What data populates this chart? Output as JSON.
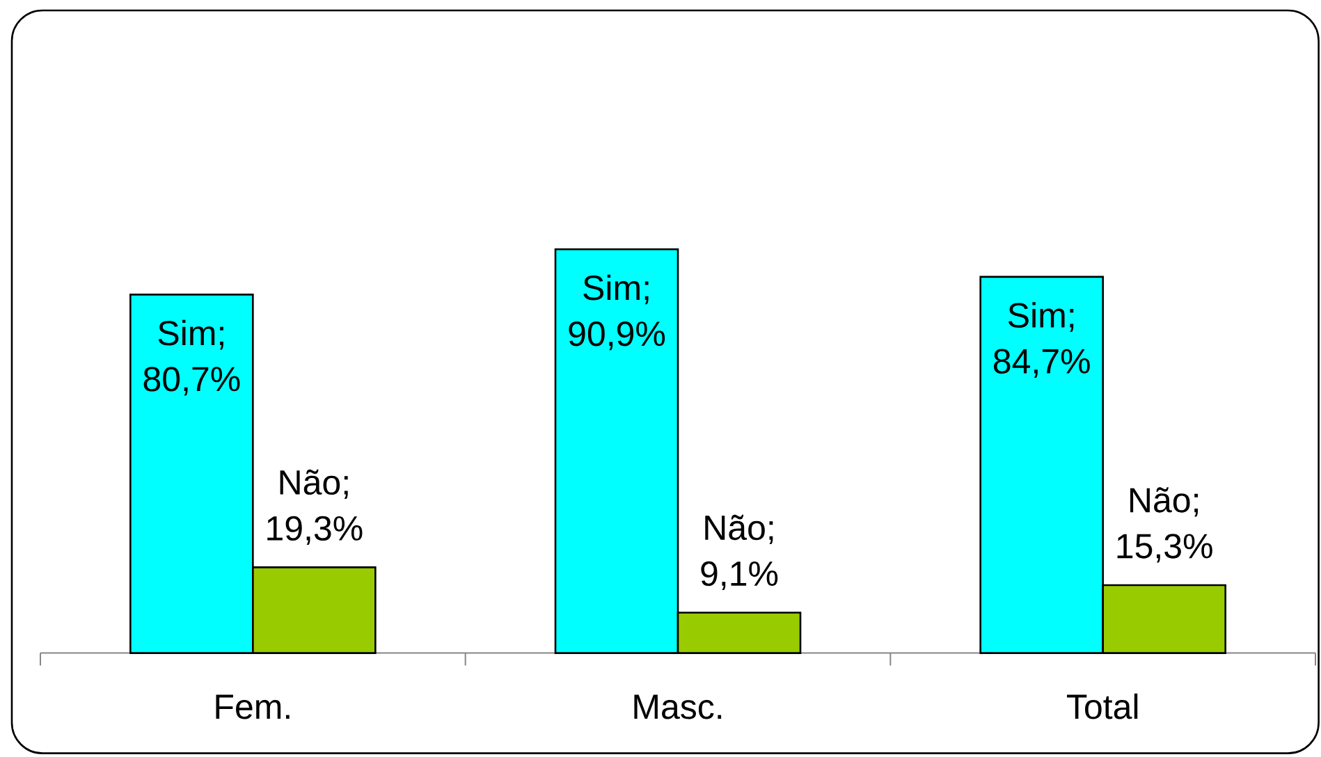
{
  "chart_data": {
    "type": "bar",
    "categories": [
      "Fem.",
      "Masc.",
      "Total"
    ],
    "series": [
      {
        "color": "#00ffff",
        "values": [
          80.7,
          90.9,
          84.7
        ],
        "value_labels": [
          "Sim; 80,7%",
          "Sim; 90,9%",
          "Sim; 84,7%"
        ]
      },
      {
        "color": "#99cc00",
        "values": [
          19.3,
          9.1,
          15.3
        ],
        "value_labels": [
          "Não; 19,3%",
          "Não; 9,1%",
          "Não; 15,3%"
        ]
      }
    ]
  }
}
